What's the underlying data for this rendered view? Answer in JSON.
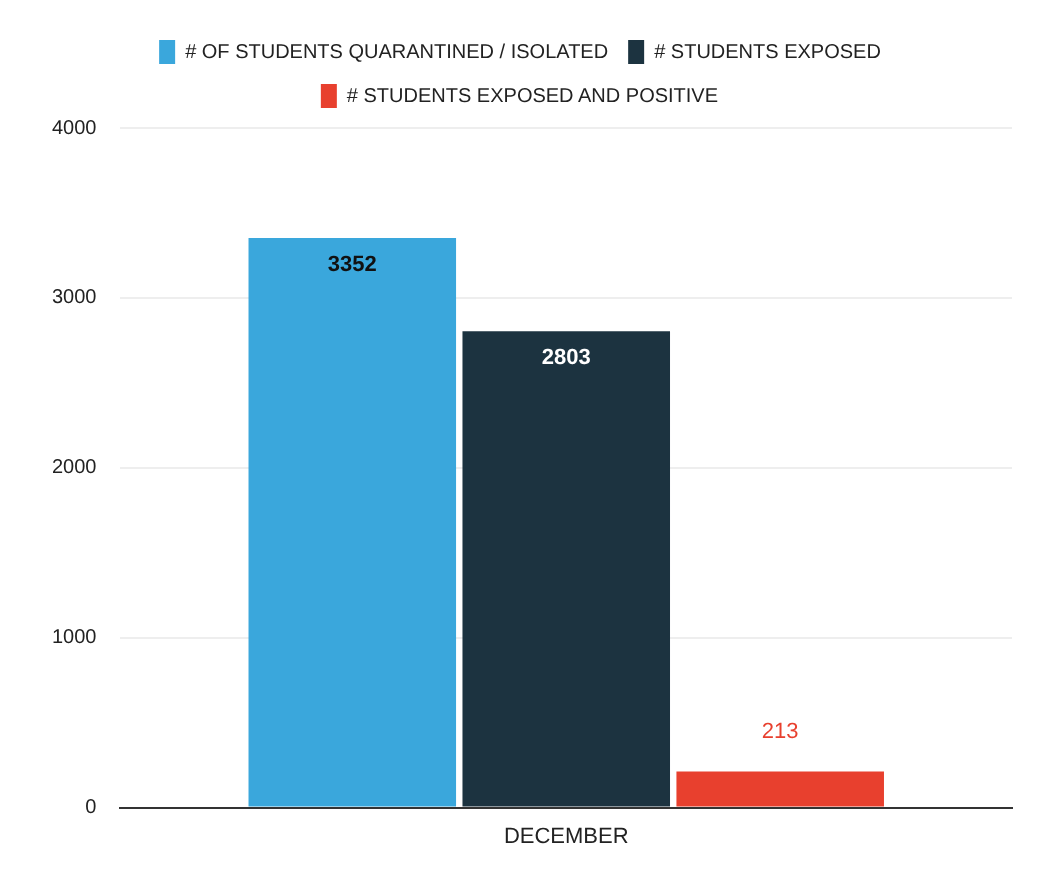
{
  "chart_data": {
    "type": "bar",
    "categories": [
      "DECEMBER"
    ],
    "series": [
      {
        "name": "# OF STUDENTS QUARANTINED / ISOLATED",
        "color": "#3aa7dc",
        "values": [
          3352
        ]
      },
      {
        "name": "# STUDENTS EXPOSED",
        "color": "#1c3340",
        "values": [
          2803
        ]
      },
      {
        "name": "# STUDENTS EXPOSED AND POSITIVE",
        "color": "#e8402e",
        "values": [
          213
        ]
      }
    ],
    "ylim": [
      0,
      4000
    ],
    "yticks": [
      0,
      1000,
      2000,
      3000,
      4000
    ],
    "grid": "y",
    "legend": "top",
    "data_labels": true
  }
}
